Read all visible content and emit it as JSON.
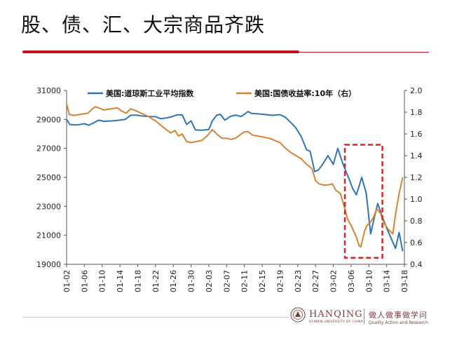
{
  "slide": {
    "title": "股、债、汇、大宗商品齐跌"
  },
  "footer": {
    "brand": "HANQING",
    "brand_sub": "RENMIN UNIVERSITY OF CHINA",
    "motto": "做人做事做学问",
    "motto_sub": "Quality Action and Research",
    "brand_color": "#7d3c3c"
  },
  "chart_data": {
    "type": "line",
    "title": "",
    "x": [
      "01-02",
      "01-06",
      "01-10",
      "01-14",
      "01-18",
      "01-22",
      "01-26",
      "01-30",
      "02-03",
      "02-07",
      "02-11",
      "02-15",
      "02-19",
      "02-23",
      "02-27",
      "03-02",
      "03-06",
      "03-10",
      "03-14",
      "03-18"
    ],
    "y_left_lim": [
      19000,
      31000
    ],
    "y_left_ticks": [
      "19000",
      "21000",
      "23000",
      "25000",
      "27000",
      "29000",
      "31000"
    ],
    "y_right_lim": [
      0.4,
      2.0
    ],
    "y_right_ticks": [
      "0.4",
      "0.6",
      "0.8",
      "1.0",
      "1.2",
      "1.4",
      "1.6",
      "1.8",
      "2.0"
    ],
    "grid": false,
    "legend_position": "top",
    "highlight_box": {
      "x_from": 15.65,
      "x_to": 17.76,
      "y_from": 19450,
      "y_to": 27250,
      "color": "#d62728"
    },
    "series": [
      {
        "name": "美国:道琼斯工业平均指数",
        "axis": "left",
        "color": "#2e75b6",
        "points": [
          [
            0.0,
            29000
          ],
          [
            0.18,
            28650
          ],
          [
            0.6,
            28620
          ],
          [
            1.0,
            28700
          ],
          [
            1.25,
            28600
          ],
          [
            1.5,
            28750
          ],
          [
            1.8,
            28950
          ],
          [
            2.1,
            28870
          ],
          [
            2.6,
            28900
          ],
          [
            3.0,
            28950
          ],
          [
            3.3,
            29000
          ],
          [
            3.6,
            29280
          ],
          [
            3.9,
            29300
          ],
          [
            4.3,
            29230
          ],
          [
            4.7,
            29200
          ],
          [
            5.0,
            29190
          ],
          [
            5.3,
            29050
          ],
          [
            5.6,
            29100
          ],
          [
            5.9,
            29180
          ],
          [
            6.2,
            29310
          ],
          [
            6.5,
            29320
          ],
          [
            6.75,
            28650
          ],
          [
            7.0,
            28900
          ],
          [
            7.25,
            28270
          ],
          [
            7.6,
            28250
          ],
          [
            8.0,
            28300
          ],
          [
            8.2,
            28900
          ],
          [
            8.45,
            29300
          ],
          [
            8.65,
            29350
          ],
          [
            8.9,
            28950
          ],
          [
            9.2,
            29200
          ],
          [
            9.5,
            29300
          ],
          [
            9.8,
            29200
          ],
          [
            10.0,
            29350
          ],
          [
            10.2,
            29550
          ],
          [
            10.4,
            29420
          ],
          [
            10.8,
            29380
          ],
          [
            11.2,
            29330
          ],
          [
            11.6,
            29280
          ],
          [
            12.0,
            29330
          ],
          [
            12.3,
            29150
          ],
          [
            12.6,
            28800
          ],
          [
            12.9,
            28400
          ],
          [
            13.2,
            27800
          ],
          [
            13.5,
            26900
          ],
          [
            13.7,
            26800
          ],
          [
            13.95,
            25400
          ],
          [
            14.15,
            25500
          ],
          [
            14.4,
            25900
          ],
          [
            14.7,
            26500
          ],
          [
            15.0,
            25900
          ],
          [
            15.25,
            27000
          ],
          [
            15.55,
            25900
          ],
          [
            15.85,
            25000
          ],
          [
            16.1,
            24200
          ],
          [
            16.3,
            23800
          ],
          [
            16.6,
            25000
          ],
          [
            16.85,
            23900
          ],
          [
            17.1,
            21100
          ],
          [
            17.3,
            22200
          ],
          [
            17.5,
            23200
          ],
          [
            17.75,
            22300
          ],
          [
            18.0,
            21500
          ],
          [
            18.25,
            20800
          ],
          [
            18.5,
            20100
          ],
          [
            18.7,
            21200
          ],
          [
            18.9,
            19900
          ]
        ]
      },
      {
        "name": "美国:国债收益率:10年（右）",
        "axis": "right",
        "color": "#d98230",
        "points": [
          [
            0.0,
            1.88
          ],
          [
            0.15,
            1.78
          ],
          [
            0.4,
            1.77
          ],
          [
            0.8,
            1.78
          ],
          [
            1.2,
            1.79
          ],
          [
            1.45,
            1.83
          ],
          [
            1.6,
            1.85
          ],
          [
            1.8,
            1.84
          ],
          [
            2.1,
            1.82
          ],
          [
            2.5,
            1.83
          ],
          [
            2.85,
            1.84
          ],
          [
            3.1,
            1.81
          ],
          [
            3.35,
            1.79
          ],
          [
            3.6,
            1.83
          ],
          [
            3.8,
            1.82
          ],
          [
            4.2,
            1.79
          ],
          [
            4.6,
            1.76
          ],
          [
            5.0,
            1.72
          ],
          [
            5.3,
            1.68
          ],
          [
            5.6,
            1.64
          ],
          [
            5.85,
            1.61
          ],
          [
            6.1,
            1.63
          ],
          [
            6.3,
            1.58
          ],
          [
            6.5,
            1.6
          ],
          [
            6.75,
            1.53
          ],
          [
            7.0,
            1.52
          ],
          [
            7.3,
            1.53
          ],
          [
            7.6,
            1.54
          ],
          [
            7.9,
            1.58
          ],
          [
            8.2,
            1.64
          ],
          [
            8.5,
            1.59
          ],
          [
            8.75,
            1.56
          ],
          [
            9.0,
            1.56
          ],
          [
            9.25,
            1.55
          ],
          [
            9.5,
            1.56
          ],
          [
            9.75,
            1.59
          ],
          [
            10.0,
            1.62
          ],
          [
            10.2,
            1.62
          ],
          [
            10.45,
            1.59
          ],
          [
            10.75,
            1.58
          ],
          [
            11.1,
            1.57
          ],
          [
            11.4,
            1.56
          ],
          [
            11.7,
            1.54
          ],
          [
            12.0,
            1.52
          ],
          [
            12.3,
            1.47
          ],
          [
            12.6,
            1.43
          ],
          [
            12.9,
            1.4
          ],
          [
            13.2,
            1.37
          ],
          [
            13.5,
            1.32
          ],
          [
            13.8,
            1.28
          ],
          [
            14.0,
            1.17
          ],
          [
            14.2,
            1.14
          ],
          [
            14.45,
            1.13
          ],
          [
            14.7,
            1.13
          ],
          [
            14.95,
            1.14
          ],
          [
            15.15,
            1.08
          ],
          [
            15.4,
            1.05
          ],
          [
            15.6,
            0.94
          ],
          [
            15.8,
            0.82
          ],
          [
            16.05,
            0.74
          ],
          [
            16.3,
            0.65
          ],
          [
            16.45,
            0.57
          ],
          [
            16.55,
            0.56
          ],
          [
            16.75,
            0.7
          ],
          [
            16.9,
            0.76
          ],
          [
            17.1,
            0.79
          ],
          [
            17.25,
            0.83
          ],
          [
            17.45,
            0.91
          ],
          [
            17.65,
            0.87
          ],
          [
            17.85,
            0.78
          ],
          [
            18.1,
            0.72
          ],
          [
            18.35,
            0.68
          ],
          [
            18.5,
            0.86
          ],
          [
            18.7,
            1.05
          ],
          [
            18.9,
            1.2
          ]
        ]
      }
    ]
  }
}
